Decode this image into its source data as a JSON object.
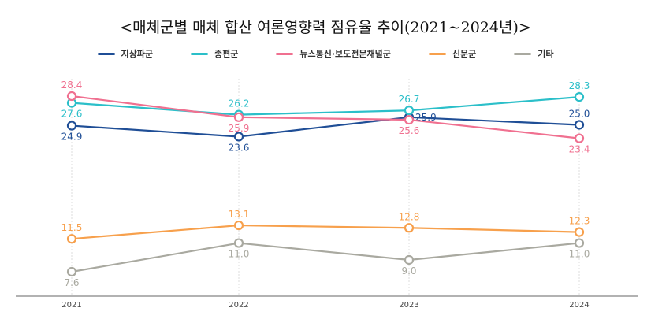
{
  "chart_data": {
    "type": "line",
    "title": "<매체군별 매체 합산 여론영향력 점유율 추이(2021~2024년)>",
    "categories": [
      "2021",
      "2022",
      "2023",
      "2024"
    ],
    "series": [
      {
        "name": "지상파군",
        "color": "#1f4e96",
        "values": [
          24.9,
          23.6,
          25.9,
          25.0
        ]
      },
      {
        "name": "종편군",
        "color": "#2bbfc9",
        "values": [
          27.6,
          26.2,
          26.7,
          28.3
        ]
      },
      {
        "name": "뉴스통신·보도전문채널군",
        "color": "#f07090",
        "values": [
          28.4,
          25.9,
          25.6,
          23.4
        ]
      },
      {
        "name": "신문군",
        "color": "#f7a04c",
        "values": [
          11.5,
          13.1,
          12.8,
          12.3
        ]
      },
      {
        "name": "기타",
        "color": "#a9a9a0",
        "values": [
          7.6,
          11.0,
          9.0,
          11.0
        ]
      }
    ],
    "legend": "top",
    "grid": false
  }
}
